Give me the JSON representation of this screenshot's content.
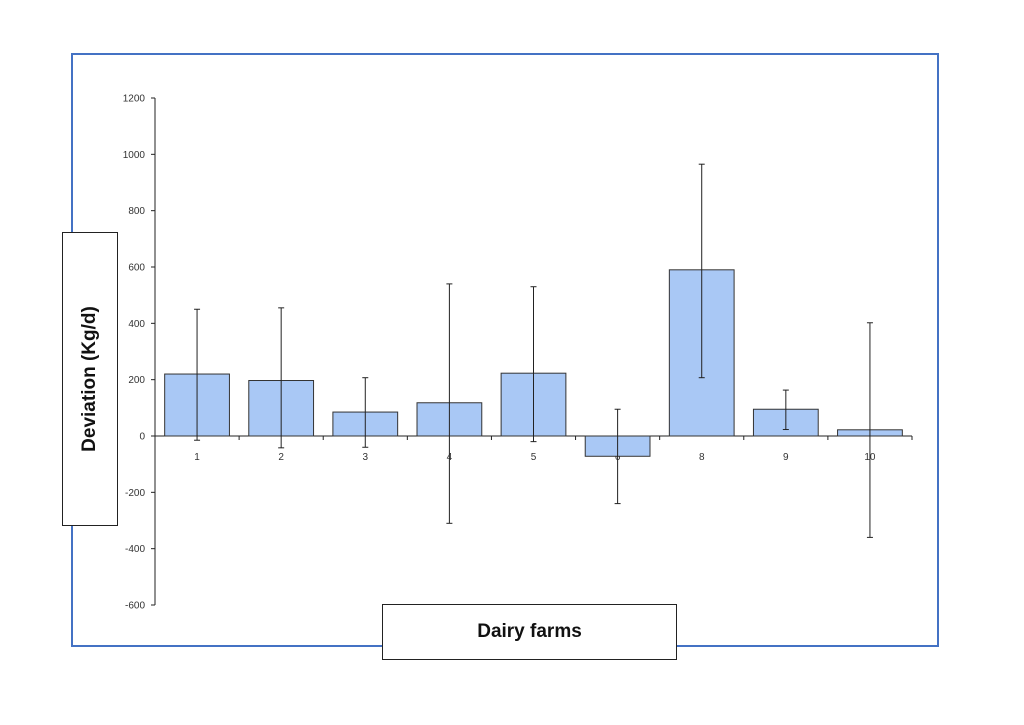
{
  "chart_data": {
    "type": "bar",
    "categories": [
      "1",
      "2",
      "3",
      "4",
      "5",
      "6",
      "8",
      "9",
      "10"
    ],
    "values": [
      220,
      197,
      85,
      118,
      223,
      -72,
      590,
      95,
      22
    ],
    "error_low": [
      -15,
      -42,
      -40,
      -310,
      -20,
      -240,
      207,
      23,
      -360
    ],
    "error_high": [
      450,
      455,
      207,
      540,
      530,
      95,
      965,
      163,
      402
    ],
    "xlabel": "Dairy farms",
    "ylabel": "Deviation (Kg/d)",
    "ylim": [
      -600,
      1200
    ],
    "yticks": [
      -600,
      -400,
      -200,
      0,
      200,
      400,
      600,
      800,
      1000,
      1200
    ],
    "grid": false,
    "bar_color": "#a9c8f5",
    "frame_color": "#4472c4"
  }
}
